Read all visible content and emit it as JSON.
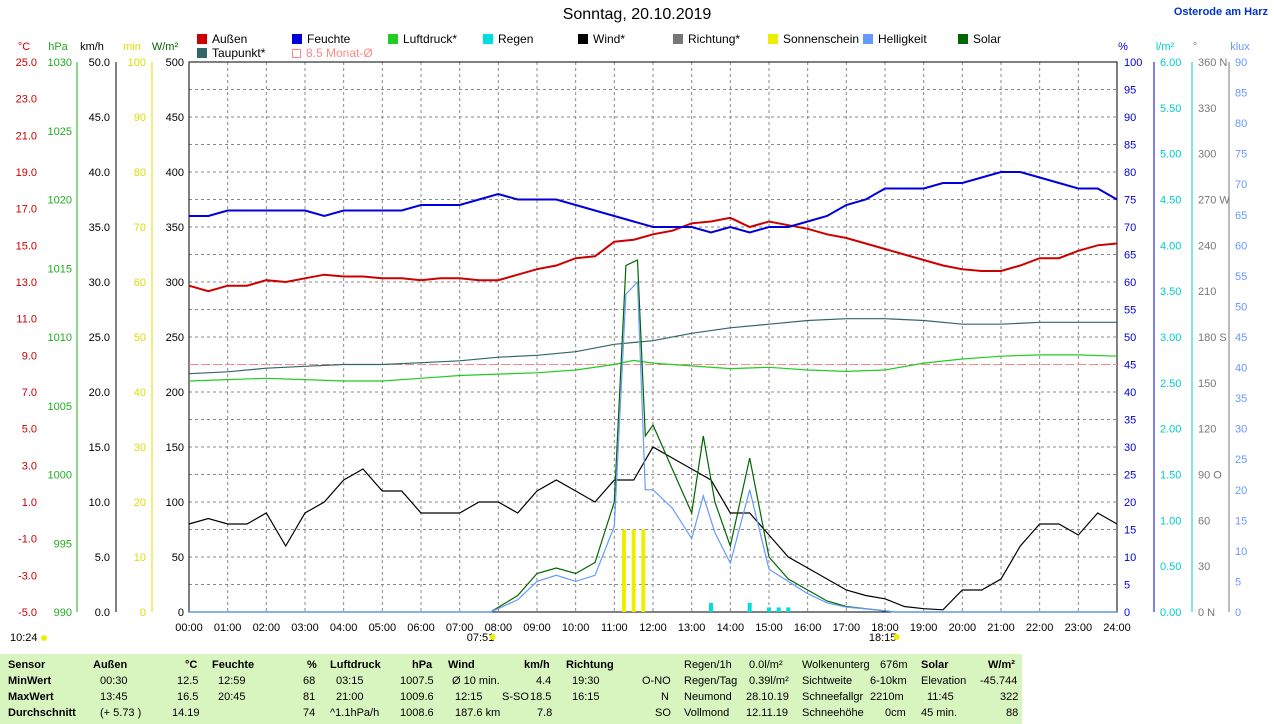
{
  "header": {
    "title": "Sonntag, 20.10.2019",
    "station": "Osterode am Harz"
  },
  "legend": [
    {
      "label": "Außen",
      "color": "#cc0000"
    },
    {
      "label": "Feuchte",
      "color": "#0000dd"
    },
    {
      "label": "Luftdruck*",
      "color": "#22cc22"
    },
    {
      "label": "Regen",
      "color": "#00dddd"
    },
    {
      "label": "Wind*",
      "color": "#000000"
    },
    {
      "label": "Richtung*",
      "color": "#777777"
    },
    {
      "label": "Sonnenschein",
      "color": "#eeee00"
    },
    {
      "label": "Helligkeit",
      "color": "#6699ff"
    },
    {
      "label": "Solar",
      "color": "#006600"
    },
    {
      "label": "Taupunkt*",
      "color": "#336666"
    },
    {
      "label": "8.5 Monat-Ø",
      "color": "#ff8888"
    }
  ],
  "axes": {
    "temp_unit": "°C",
    "temp_ticks": [
      "25.0",
      "23.0",
      "21.0",
      "19.0",
      "17.0",
      "15.0",
      "13.0",
      "11.0",
      "9.0",
      "7.0",
      "5.0",
      "3.0",
      "1.0",
      "-1.0",
      "-3.0",
      "-5.0"
    ],
    "hpa_unit": "hPa",
    "hpa_ticks": [
      "1030",
      "1025",
      "1020",
      "1015",
      "1010",
      "1005",
      "1000",
      "995",
      "990"
    ],
    "kmh_unit": "km/h",
    "kmh_ticks": [
      "50.0",
      "45.0",
      "40.0",
      "35.0",
      "30.0",
      "25.0",
      "20.0",
      "15.0",
      "10.0",
      "5.0",
      "0.0"
    ],
    "min_unit": "min",
    "min_ticks": [
      "100",
      "90",
      "80",
      "70",
      "60",
      "50",
      "40",
      "30",
      "20",
      "10",
      "0"
    ],
    "wm2_unit": "W/m²",
    "wm2_ticks": [
      "500",
      "450",
      "400",
      "350",
      "300",
      "250",
      "200",
      "150",
      "100",
      "50",
      "0"
    ],
    "pct_unit": "%",
    "pct_ticks": [
      "100",
      "95",
      "90",
      "85",
      "80",
      "75",
      "70",
      "65",
      "60",
      "55",
      "50",
      "45",
      "40",
      "35",
      "30",
      "25",
      "20",
      "15",
      "10",
      "5",
      "0"
    ],
    "lm2_unit": "l/m²",
    "lm2_ticks": [
      "6.00",
      "5.50",
      "5.00",
      "4.50",
      "4.00",
      "3.50",
      "3.00",
      "2.50",
      "2.00",
      "1.50",
      "1.00",
      "0.50",
      "0.00"
    ],
    "deg_unit": "°",
    "deg_ticks": [
      "360 N",
      "330",
      "300",
      "270 W",
      "240",
      "210",
      "180 S",
      "150",
      "120",
      "90 O",
      "60",
      "30",
      "0 N"
    ],
    "klux_unit": "klux",
    "klux_ticks": [
      "90",
      "85",
      "80",
      "75",
      "70",
      "65",
      "60",
      "55",
      "50",
      "45",
      "40",
      "35",
      "30",
      "25",
      "20",
      "15",
      "10",
      "5",
      "0"
    ],
    "time_ticks": [
      "00:00",
      "01:00",
      "02:00",
      "03:00",
      "04:00",
      "05:00",
      "06:00",
      "07:00",
      "08:00",
      "09:00",
      "10:00",
      "11:00",
      "12:00",
      "13:00",
      "14:00",
      "15:00",
      "16:00",
      "17:00",
      "18:00",
      "19:00",
      "20:00",
      "21:00",
      "22:00",
      "23:00",
      "24:00"
    ]
  },
  "markers": {
    "now": "10:24",
    "sunrise": "07:51",
    "sunset": "18:15"
  },
  "chart_data": {
    "type": "line",
    "x_unit": "hour of day",
    "xlim": [
      0,
      24
    ],
    "series": [
      {
        "name": "Außen",
        "axis": "°C",
        "color": "#cc0000",
        "x": [
          0,
          0.5,
          1,
          1.5,
          2,
          2.5,
          3,
          3.5,
          4,
          4.5,
          5,
          5.5,
          6,
          6.5,
          7,
          7.5,
          8,
          8.5,
          9,
          9.5,
          10,
          10.5,
          11,
          11.5,
          12,
          12.5,
          13,
          13.5,
          14,
          14.5,
          15,
          15.5,
          16,
          16.5,
          17,
          17.5,
          18,
          18.5,
          19,
          19.5,
          20,
          20.5,
          21,
          21.5,
          22,
          22.5,
          23,
          23.5,
          24
        ],
        "y": [
          12.8,
          12.5,
          12.8,
          12.8,
          13.1,
          13.0,
          13.2,
          13.4,
          13.3,
          13.3,
          13.2,
          13.2,
          13.1,
          13.2,
          13.2,
          13.1,
          13.1,
          13.4,
          13.7,
          13.9,
          14.3,
          14.4,
          15.2,
          15.3,
          15.6,
          15.8,
          16.2,
          16.3,
          16.5,
          16.0,
          16.3,
          16.1,
          15.9,
          15.6,
          15.4,
          15.1,
          14.8,
          14.5,
          14.2,
          13.9,
          13.7,
          13.6,
          13.6,
          13.9,
          14.3,
          14.3,
          14.7,
          15.0,
          15.1
        ]
      },
      {
        "name": "Feuchte",
        "axis": "%",
        "color": "#0000dd",
        "x": [
          0,
          0.5,
          1,
          1.5,
          2,
          2.5,
          3,
          3.5,
          4,
          4.5,
          5,
          5.5,
          6,
          6.5,
          7,
          7.5,
          8,
          8.5,
          9,
          9.5,
          10,
          10.5,
          11,
          11.5,
          12,
          12.5,
          13,
          13.5,
          14,
          14.5,
          15,
          15.5,
          16,
          16.5,
          17,
          17.5,
          18,
          18.5,
          19,
          19.5,
          20,
          20.5,
          21,
          21.5,
          22,
          22.5,
          23,
          23.5,
          24
        ],
        "y": [
          72,
          72,
          73,
          73,
          73,
          73,
          73,
          72,
          73,
          73,
          73,
          73,
          74,
          74,
          74,
          75,
          76,
          75,
          75,
          75,
          74,
          73,
          72,
          71,
          70,
          70,
          70,
          69,
          70,
          69,
          70,
          70,
          71,
          72,
          74,
          75,
          77,
          77,
          77,
          78,
          78,
          79,
          80,
          80,
          79,
          78,
          77,
          77,
          75
        ]
      },
      {
        "name": "Luftdruck*",
        "axis": "hPa",
        "color": "#22cc22",
        "x": [
          0,
          1,
          2,
          3,
          4,
          5,
          6,
          7,
          8,
          9,
          10,
          11,
          11.5,
          12,
          13,
          14,
          15,
          16,
          17,
          18,
          19,
          20,
          21,
          22,
          23,
          24
        ],
        "y": [
          1006.8,
          1006.9,
          1007.0,
          1006.9,
          1006.8,
          1006.8,
          1007.0,
          1007.2,
          1007.3,
          1007.4,
          1007.6,
          1008.0,
          1008.3,
          1008.1,
          1007.9,
          1007.7,
          1007.8,
          1007.6,
          1007.5,
          1007.6,
          1008.1,
          1008.4,
          1008.6,
          1008.7,
          1008.7,
          1008.6
        ]
      },
      {
        "name": "Taupunkt*",
        "axis": "°C",
        "color": "#336666",
        "x": [
          0,
          1,
          2,
          3,
          4,
          5,
          6,
          7,
          8,
          9,
          10,
          11,
          12,
          13,
          14,
          15,
          16,
          17,
          18,
          19,
          20,
          21,
          22,
          23,
          24
        ],
        "y": [
          8.0,
          8.1,
          8.3,
          8.4,
          8.5,
          8.5,
          8.6,
          8.7,
          8.9,
          9.0,
          9.2,
          9.6,
          9.8,
          10.2,
          10.5,
          10.7,
          10.9,
          11.0,
          11.0,
          10.9,
          10.7,
          10.7,
          10.8,
          10.8,
          10.8
        ]
      },
      {
        "name": "Wind*",
        "axis": "km/h",
        "color": "#000000",
        "x": [
          0,
          0.5,
          1,
          1.5,
          2,
          2.5,
          3,
          3.5,
          4,
          4.5,
          5,
          5.5,
          6,
          6.5,
          7,
          7.5,
          8,
          8.5,
          9,
          9.5,
          10,
          10.5,
          11,
          11.5,
          12,
          12.5,
          13,
          13.5,
          14,
          14.5,
          15,
          15.5,
          16,
          16.5,
          17,
          17.5,
          18,
          18.5,
          19,
          19.5,
          20,
          20.5,
          21,
          21.5,
          22,
          22.5,
          23,
          23.5,
          24
        ],
        "y": [
          8,
          8.5,
          8,
          8,
          9,
          6,
          9,
          10,
          12,
          13,
          11,
          11,
          9,
          9,
          9,
          10,
          10,
          9,
          11,
          12,
          11,
          10,
          12,
          12,
          15,
          14,
          13,
          12,
          9,
          9,
          7,
          5,
          4,
          3,
          2,
          1.5,
          1.2,
          0.5,
          0.3,
          0.2,
          2,
          2,
          3,
          6,
          8,
          8,
          7,
          9,
          8
        ]
      },
      {
        "name": "Solar",
        "axis": "W/m²",
        "color": "#006600",
        "x": [
          0,
          7.8,
          8.5,
          9,
          9.5,
          10,
          10.5,
          11,
          11.3,
          11.6,
          11.8,
          12,
          12.5,
          13,
          13.3,
          13.6,
          14,
          14.5,
          15,
          15.5,
          16,
          16.5,
          17,
          17.5,
          18,
          18.25,
          24
        ],
        "y": [
          0,
          0,
          15,
          35,
          40,
          35,
          45,
          100,
          315,
          320,
          160,
          170,
          130,
          90,
          160,
          100,
          60,
          140,
          50,
          30,
          20,
          10,
          5,
          3,
          1,
          0,
          0
        ]
      },
      {
        "name": "Helligkeit",
        "axis": "klux",
        "color": "#6699ff",
        "x": [
          0,
          7.8,
          8.5,
          9,
          9.5,
          10,
          10.5,
          11,
          11.3,
          11.6,
          11.8,
          12,
          12.5,
          13,
          13.3,
          13.6,
          14,
          14.5,
          15,
          15.5,
          16,
          16.5,
          17,
          17.5,
          18,
          18.25,
          24
        ],
        "y": [
          0,
          0,
          2,
          5,
          6,
          5,
          6,
          14,
          52,
          54,
          20,
          20,
          17,
          12,
          19,
          13,
          8,
          20,
          7,
          5,
          3,
          1.5,
          0.8,
          0.5,
          0.2,
          0,
          0
        ]
      },
      {
        "name": "Sonnenschein",
        "axis": "min",
        "type": "bar",
        "color": "#eeee00",
        "x": [
          11.25,
          11.5,
          11.75
        ],
        "y": [
          15,
          15,
          15
        ]
      },
      {
        "name": "Regen",
        "axis": "l/m²",
        "type": "bar",
        "color": "#00dddd",
        "x": [
          13.5,
          14.5,
          15.0,
          15.25,
          15.5
        ],
        "y": [
          0.1,
          0.1,
          0.05,
          0.05,
          0.05
        ]
      }
    ],
    "reference_lines": [
      {
        "name": "8.5 Monat-Ø",
        "axis": "°C",
        "value": 8.5,
        "color": "#ff8888"
      }
    ]
  },
  "stats": {
    "rows": [
      "Sensor",
      "MinWert",
      "MaxWert",
      "Durchschnitt"
    ],
    "aussen": {
      "header": "Außen",
      "unit": "°C",
      "min_time": "00:30",
      "min": "12.5",
      "max_time": "13:45",
      "max": "16.5",
      "avg_extra": "(+ 5.73 )",
      "avg": "14.19"
    },
    "feuchte": {
      "header": "Feuchte",
      "unit": "%",
      "min_time": "12:59",
      "min": "68",
      "max_time": "20:45",
      "max": "81",
      "avg": "74"
    },
    "druck": {
      "header": "Luftdruck",
      "unit": "hPa",
      "min_time": "03:15",
      "min": "1007.5",
      "max_time": "21:00",
      "max": "1009.6",
      "avg_extra": "^1.1hPa/h",
      "avg": "1008.6"
    },
    "wind": {
      "header": "Wind",
      "unit": "km/h",
      "min_label": "Ø 10 min.",
      "min": "4.4",
      "max_time": "12:15",
      "max_dir": "S-SO",
      "max": "18.5",
      "avg_extra": "187.6 km",
      "avg": "7.8"
    },
    "richtung": {
      "header": "Richtung",
      "min_time": "19:30",
      "min": "O-NO",
      "max_time": "16:15",
      "max": "N",
      "avg": "SO"
    },
    "regen": {
      "l1": "Regen/1h",
      "v1": "0.0l/m²",
      "l2": "Regen/Tag",
      "v2": "0.39l/m²",
      "l3": "Neumond",
      "v3": "28.10.19",
      "l4": "Vollmond",
      "v4": "12.11.19"
    },
    "wolken": {
      "l1": "Wolkenunterg",
      "v1": "676m",
      "l2": "Sichtweite",
      "v2": "6-10km",
      "l3": "Schneefallgr",
      "v3": "2210m",
      "l4": "Schneehöhe",
      "v4": "0cm"
    },
    "solar": {
      "header": "Solar",
      "unit": "W/m²",
      "l1": "Elevation",
      "v1": "-45.744",
      "l2": "11:45",
      "v2": "322",
      "l3": "45 min.",
      "v3": "88"
    }
  }
}
